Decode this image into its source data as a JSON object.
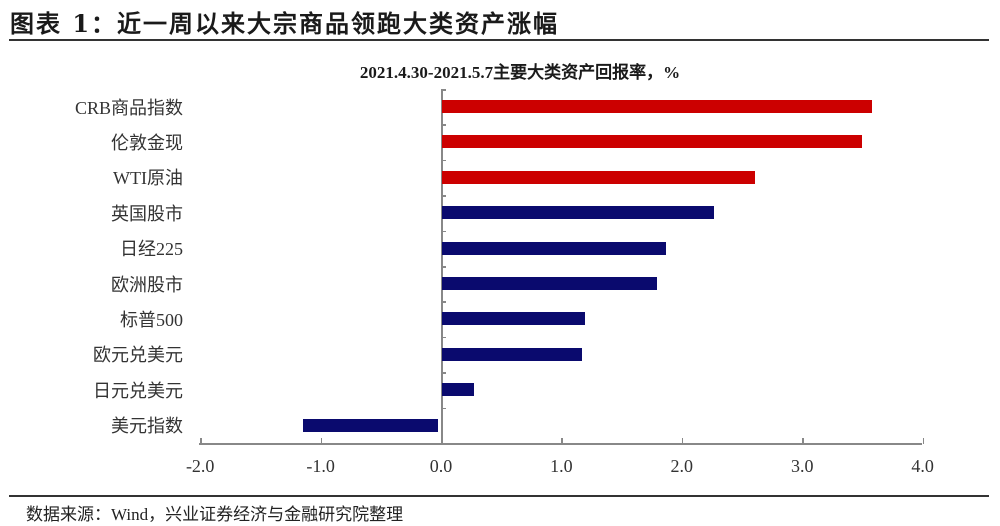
{
  "figure": {
    "title": "图表 1：近一周以来大宗商品领跑大类资产涨幅",
    "source": "数据来源：Wind，兴业证券经济与金融研究院整理"
  },
  "colors": {
    "commodity": "#cc0000",
    "other": "#0a0a6e",
    "axis": "#888888"
  },
  "chart_data": {
    "type": "bar",
    "orientation": "horizontal",
    "title": "2021.4.30-2021.5.7主要大类资产回报率，%",
    "xlabel": "",
    "ylabel": "",
    "categories": [
      "CRB商品指数",
      "伦敦金现",
      "WTI原油",
      "英国股市",
      "日经225",
      "欧洲股市",
      "标普500",
      "欧元兑美元",
      "日元兑美元",
      "美元指数"
    ],
    "values": [
      3.58,
      3.5,
      2.61,
      2.27,
      1.87,
      1.79,
      1.2,
      1.17,
      0.27,
      -1.15
    ],
    "bar_colors": [
      "#cc0000",
      "#cc0000",
      "#cc0000",
      "#0a0a6e",
      "#0a0a6e",
      "#0a0a6e",
      "#0a0a6e",
      "#0a0a6e",
      "#0a0a6e",
      "#0a0a6e"
    ],
    "xlim": [
      -2.0,
      4.0
    ],
    "xticks": [
      "-2.0",
      "-1.0",
      "0.0",
      "1.0",
      "2.0",
      "3.0",
      "4.0"
    ],
    "grid": false,
    "legend": null
  }
}
